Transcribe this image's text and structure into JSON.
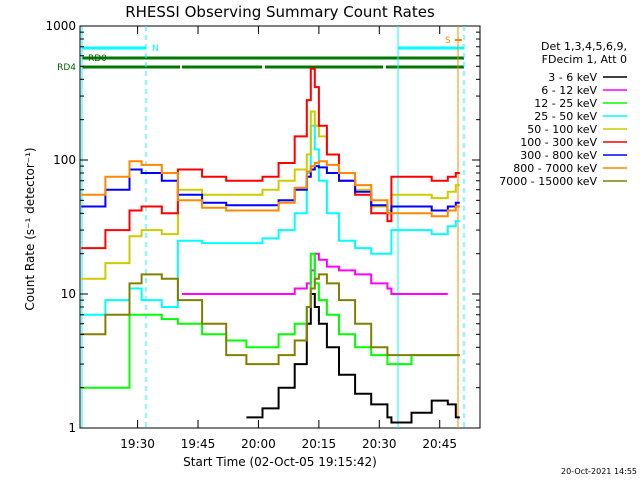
{
  "chart_data": {
    "type": "line",
    "title": "RHESSI Observing Summary Count Rates",
    "xlabel": "Start Time (02-Oct-05 19:15:42)",
    "ylabel": "Count Rate (s⁻¹ detector⁻¹)",
    "yscale": "log",
    "ylim": [
      1,
      1000
    ],
    "xlim": [
      "19:15:42",
      "20:55:00"
    ],
    "x_ticks": [
      "19:30",
      "19:45",
      "20:00",
      "20:15",
      "20:30",
      "20:45"
    ],
    "y_ticks": [
      "1",
      "10",
      "100",
      "1000"
    ],
    "legend_position": "right",
    "legend_header": [
      "Det 1,3,4,5,6,9,",
      "FDecim 1, Att 0"
    ],
    "x": [
      "19:16",
      "19:22",
      "19:28",
      "19:31",
      "19:36",
      "19:40",
      "19:41",
      "19:46",
      "19:52",
      "19:57",
      "20:01",
      "20:05",
      "20:09",
      "20:12",
      "20:13",
      "20:14",
      "20:15",
      "20:17",
      "20:20",
      "20:24",
      "20:28",
      "20:32",
      "20:33",
      "20:38",
      "20:43",
      "20:47",
      "20:49"
    ],
    "series": [
      {
        "name": "3 - 6 keV",
        "color": "#000000",
        "values": [
          null,
          null,
          null,
          null,
          null,
          null,
          null,
          null,
          null,
          1.2,
          1.4,
          2,
          3,
          6,
          10,
          8,
          6,
          4,
          2.5,
          1.8,
          1.5,
          1.2,
          1.1,
          1.3,
          1.6,
          1.5,
          1.2
        ]
      },
      {
        "name": "6 - 12 keV",
        "color": "#ff00ff",
        "values": [
          null,
          null,
          null,
          null,
          null,
          null,
          10,
          10,
          10,
          10,
          10,
          10,
          11,
          12,
          15,
          20,
          18,
          16,
          15,
          14,
          12,
          11,
          10,
          10,
          10,
          null,
          null
        ]
      },
      {
        "name": "12 - 25 keV",
        "color": "#00ff00",
        "values": [
          2,
          2,
          7,
          7,
          6.5,
          6,
          6,
          5,
          4.5,
          4,
          4,
          5,
          6,
          8,
          20,
          12,
          9,
          7,
          5,
          4,
          3.5,
          3,
          3,
          3.5,
          3.5,
          3.5,
          3.5
        ]
      },
      {
        "name": "25 - 50 keV",
        "color": "#00ffff",
        "values": [
          7,
          9,
          11,
          9,
          8,
          25,
          25,
          24,
          24,
          24,
          26,
          30,
          40,
          80,
          180,
          120,
          70,
          40,
          25,
          22,
          20,
          20,
          30,
          30,
          28,
          32,
          35
        ]
      },
      {
        "name": "50 - 100 keV",
        "color": "#cccc00",
        "values": [
          13,
          17,
          27,
          30,
          28,
          60,
          60,
          55,
          55,
          55,
          60,
          70,
          85,
          110,
          230,
          180,
          150,
          110,
          80,
          60,
          45,
          42,
          55,
          55,
          52,
          58,
          65
        ]
      },
      {
        "name": "100 - 300 keV",
        "color": "#ff0000",
        "values": [
          22,
          30,
          42,
          45,
          40,
          85,
          85,
          75,
          70,
          70,
          75,
          95,
          150,
          280,
          480,
          350,
          180,
          110,
          70,
          55,
          40,
          35,
          75,
          75,
          70,
          75,
          80
        ]
      },
      {
        "name": "300 - 800 keV",
        "color": "#0000ff",
        "values": [
          45,
          60,
          85,
          80,
          70,
          55,
          55,
          48,
          46,
          46,
          46,
          50,
          60,
          75,
          85,
          90,
          88,
          80,
          70,
          58,
          46,
          40,
          45,
          45,
          42,
          45,
          48
        ]
      },
      {
        "name": "800 - 7000 keV",
        "color": "#ff8800",
        "values": [
          55,
          75,
          98,
          92,
          80,
          50,
          50,
          44,
          42,
          42,
          42,
          48,
          62,
          82,
          90,
          95,
          98,
          92,
          80,
          65,
          50,
          40,
          40,
          40,
          38,
          42,
          45
        ]
      },
      {
        "name": "7000 - 15000 keV",
        "color": "#808000",
        "values": [
          5,
          7,
          12,
          14,
          13,
          9,
          9,
          6,
          3.5,
          3,
          3,
          3.5,
          4.5,
          8,
          11,
          13,
          14,
          12,
          9,
          6,
          4,
          3.5,
          3.5,
          3.5,
          3.5,
          3.5,
          3.5
        ]
      }
    ],
    "markers": {
      "top_left": "N",
      "top_right": "S",
      "row1": "RD0",
      "row2": "RD4"
    },
    "timestamp": "20-Oct-2021 14:55"
  }
}
